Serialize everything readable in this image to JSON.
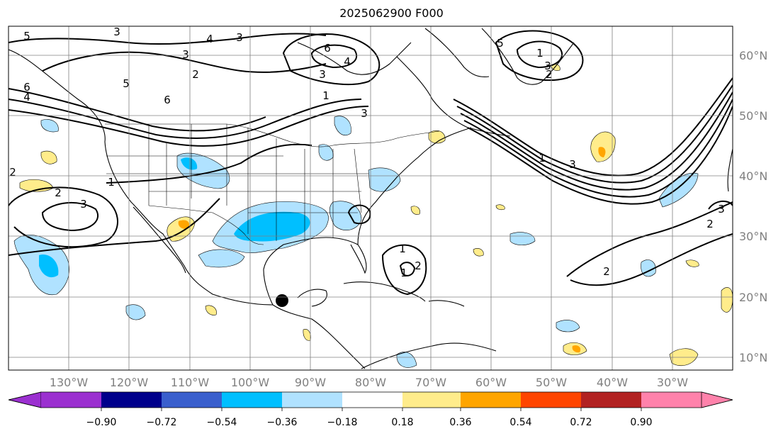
{
  "title": "2025062900 F000",
  "lon_labels": [
    "130°W",
    "120°W",
    "110°W",
    "100°W",
    "90°W",
    "80°W",
    "70°W",
    "60°W",
    "50°W",
    "40°W",
    "30°W"
  ],
  "lat_labels": [
    "60°N",
    "50°N",
    "40°N",
    "30°N",
    "20°N",
    "10°N"
  ],
  "colorbar": {
    "ticks": [
      "−0.90",
      "−0.72",
      "−0.54",
      "−0.36",
      "−0.18",
      "0.18",
      "0.36",
      "0.54",
      "0.72",
      "0.90"
    ],
    "colors": [
      "#9b30d0",
      "#00008b",
      "#3a5fcd",
      "#00bfff",
      "#b0e2ff",
      "#ffffff",
      "#ffec8b",
      "#ffa500",
      "#ff4500",
      "#b22222",
      "#ff82ab"
    ]
  },
  "contour_labels": [
    "5",
    "3",
    "4",
    "3",
    "3",
    "2",
    "6",
    "4",
    "5",
    "6",
    "3",
    "3",
    "4",
    "6",
    "3",
    "2",
    "5",
    "1",
    "3",
    "2",
    "1",
    "3",
    "2",
    "1",
    "1",
    "1",
    "2",
    "1",
    "3",
    "2",
    "2"
  ],
  "colors": {
    "contour": "#000000",
    "grid": "#808080",
    "coast": "#000000"
  }
}
